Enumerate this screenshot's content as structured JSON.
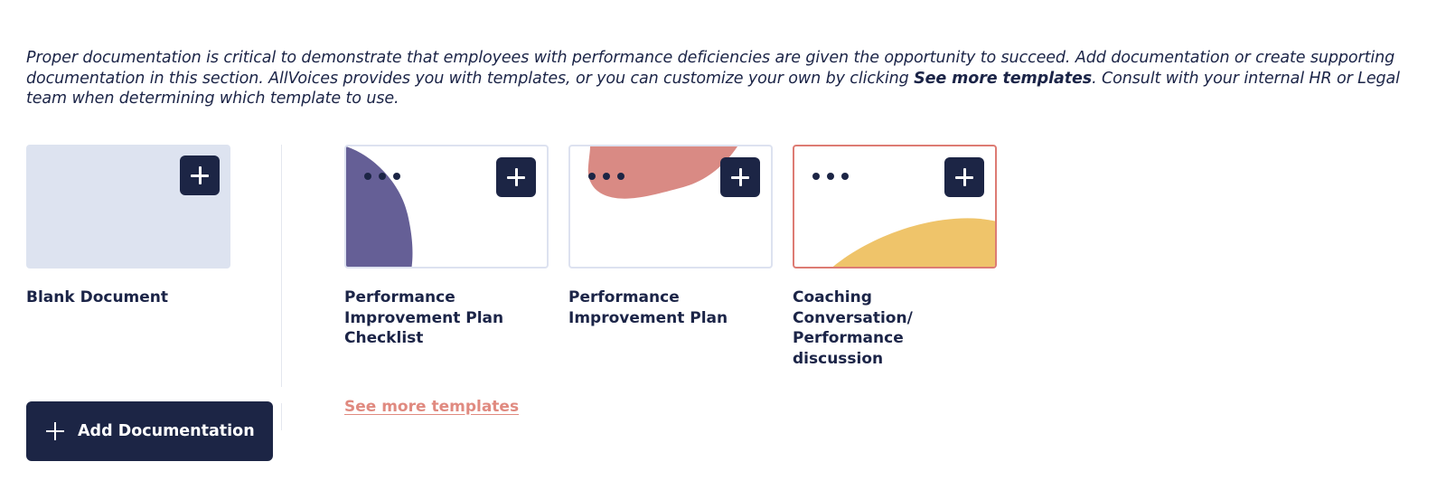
{
  "intro": {
    "text_before": "Proper documentation is critical to demonstrate that employees with performance deficiencies are given the opportunity to succeed. Add documentation or create supporting documentation in this section. AllVoices provides you with templates, or you can customize your own by clicking ",
    "bold_phrase": "See more templates",
    "text_after": ". Consult with your internal HR or Legal team when determining which template to use."
  },
  "blank_card": {
    "label": "Blank Document",
    "icon": "plus-icon"
  },
  "templates": [
    {
      "label": "Performance Improvement Plan Checklist",
      "accent": "#655f96",
      "selected": false
    },
    {
      "label": "Performance Improvement Plan",
      "accent": "#d98a84",
      "selected": false
    },
    {
      "label": "Coaching Conversation/ Performance discussion",
      "accent": "#efc46a",
      "selected": true
    }
  ],
  "see_more_label": "See more templates",
  "add_documentation_label": "Add Documentation",
  "colors": {
    "navy": "#1c2545",
    "blank_bg": "#dde3f0",
    "card_border": "#dde2f0",
    "selected_border": "#dd7b73",
    "link": "#e08a80"
  }
}
